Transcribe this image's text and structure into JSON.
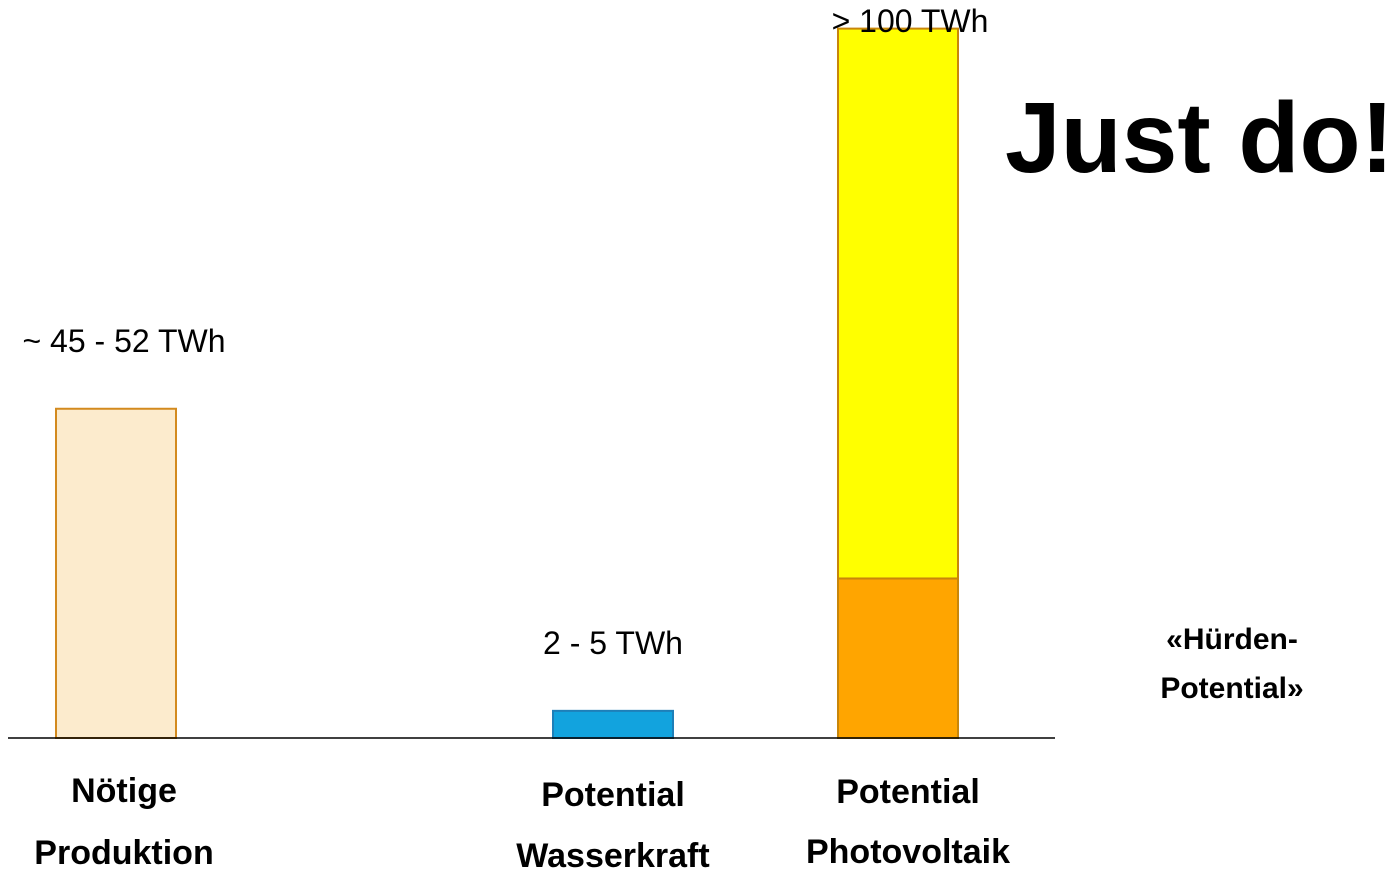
{
  "chart_data": {
    "type": "bar",
    "title": "",
    "xlabel": "",
    "ylabel": "",
    "ylim": [
      0,
      104
    ],
    "grid": false,
    "legend": "none",
    "categories": [
      [
        "Nötige",
        "Produktion"
      ],
      [
        "Potential",
        "Wasserkraft"
      ],
      [
        "Potential",
        "Photovoltaik"
      ]
    ],
    "bars": [
      {
        "category_index": 0,
        "segments": [
          {
            "value": 48.5,
            "color": "#FCEBCD",
            "stroke": "#D38A1E"
          }
        ],
        "label": "~ 45 - 52 TWh"
      },
      {
        "category_index": 1,
        "segments": [
          {
            "value": 4,
            "color": "#12A3DE",
            "stroke": "#1E7FB8"
          }
        ],
        "label": "2 - 5 TWh"
      },
      {
        "category_index": 2,
        "segments": [
          {
            "value": 23.5,
            "color": "#FFA500",
            "stroke": "#C8860A"
          },
          {
            "value": 81.0,
            "color": "#FFFF00",
            "stroke": "#C8860A"
          }
        ],
        "label": "> 100 TWh"
      }
    ],
    "annotations": {
      "headline": "Just do!",
      "side_note": [
        "«Hürden-",
        "Potential»"
      ]
    }
  }
}
